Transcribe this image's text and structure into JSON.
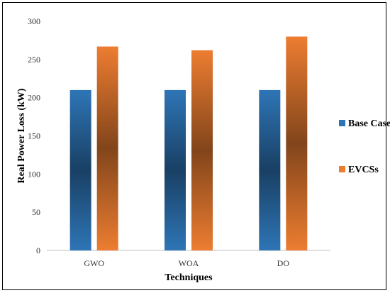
{
  "chart_data": {
    "type": "bar",
    "categories": [
      "GWO",
      "WOA",
      "DO"
    ],
    "series": [
      {
        "name": "Base Case",
        "values": [
          210,
          210,
          210
        ],
        "color": "#2E75B6"
      },
      {
        "name": "EVCSs",
        "values": [
          267,
          262,
          280
        ],
        "color": "#ED7D31"
      }
    ],
    "xlabel": "Techniques",
    "ylabel": "Real Power Loss (kW)",
    "ylim": [
      0,
      300
    ],
    "yticks": [
      0,
      50,
      100,
      150,
      200,
      250,
      300
    ],
    "grid": false,
    "legend_position": "right"
  }
}
